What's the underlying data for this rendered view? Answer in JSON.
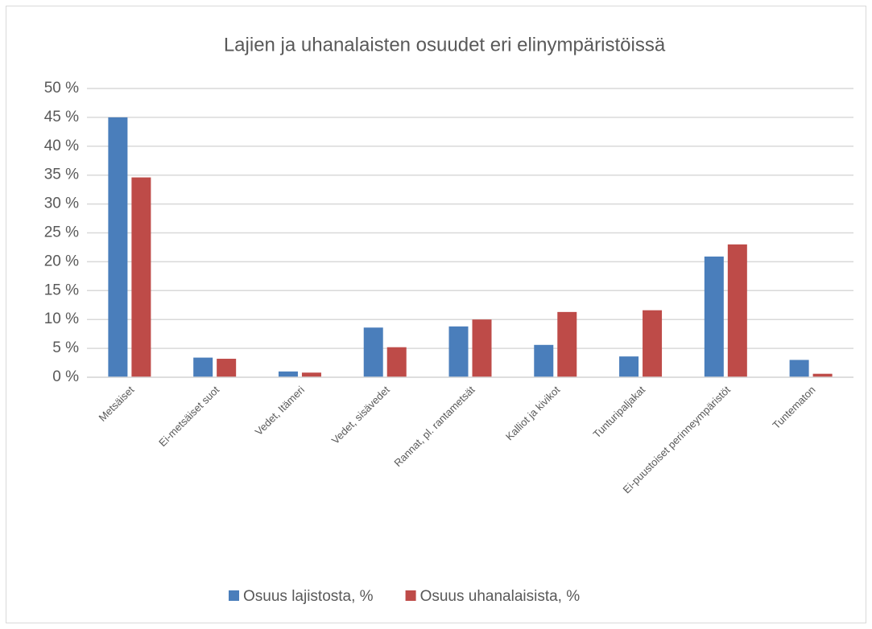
{
  "chart_data": {
    "type": "bar",
    "title": "Lajien ja uhanalaisten osuudet eri elinympäristöissä",
    "categories": [
      "Metsäiset",
      "Ei-metsäiset suot",
      "Vedet, Itämeri",
      "Vedet, sisävedet",
      "Rannat, pl. rantametsät",
      "Kalliot ja kivikot",
      "Tunturipaljakat",
      "Ei-puustoiset perinneympäristöt",
      "Tuntematon"
    ],
    "series": [
      {
        "name": "Osuus lajistosta, %",
        "color": "#4a7ebb",
        "values": [
          45,
          3.4,
          1.0,
          8.6,
          8.8,
          5.6,
          3.6,
          20.9,
          3.0
        ]
      },
      {
        "name": "Osuus uhanalaisista, %",
        "color": "#be4b48",
        "values": [
          34.6,
          3.2,
          0.8,
          5.2,
          10.0,
          11.3,
          11.6,
          23.0,
          0.6
        ]
      }
    ],
    "ylim": [
      0,
      50
    ],
    "yticks": [
      {
        "value": 0,
        "label": "0 %"
      },
      {
        "value": 5,
        "label": "5 %"
      },
      {
        "value": 10,
        "label": "10 %"
      },
      {
        "value": 15,
        "label": "15 %"
      },
      {
        "value": 20,
        "label": "20 %"
      },
      {
        "value": 25,
        "label": "25 %"
      },
      {
        "value": 30,
        "label": "30 %"
      },
      {
        "value": 35,
        "label": "35 %"
      },
      {
        "value": 40,
        "label": "40 %"
      },
      {
        "value": 45,
        "label": "45 %"
      },
      {
        "value": 50,
        "label": "50 %"
      }
    ],
    "grid": true,
    "legend": "bottom"
  }
}
